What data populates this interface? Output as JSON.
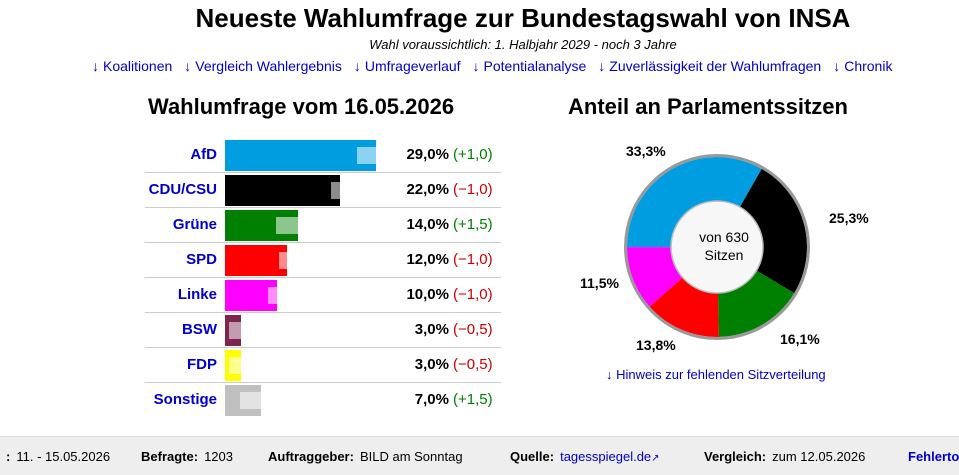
{
  "header": {
    "title": "Neueste Wahlumfrage zur Bundestagswahl von INSA",
    "subtitle": "Wahl voraussichtlich: 1. Halbjahr 2029 - noch 3 Jahre"
  },
  "nav": [
    {
      "arrow": "↓",
      "label": "Koalitionen"
    },
    {
      "arrow": "↓",
      "label": "Vergleich Wahlergebnis"
    },
    {
      "arrow": "↓",
      "label": "Umfrageverlauf"
    },
    {
      "arrow": "↓",
      "label": "Potentialanalyse"
    },
    {
      "arrow": "↓",
      "label": "Zuverlässigkeit der Wahlumfragen"
    },
    {
      "arrow": "↓",
      "label": "Chronik"
    }
  ],
  "poll": {
    "heading": "Wahlumfrage vom 16.05.2026",
    "parties": [
      {
        "name": "AfD",
        "value_label": "29,0%",
        "delta_label": "(+1,0)",
        "delta_sign": "pos",
        "color": "#009ee0"
      },
      {
        "name": "CDU/CSU",
        "value_label": "22,0%",
        "delta_label": "(−1,0)",
        "delta_sign": "neg",
        "color": "#000000"
      },
      {
        "name": "Grüne",
        "value_label": "14,0%",
        "delta_label": "(+1,5)",
        "delta_sign": "pos",
        "color": "#008000"
      },
      {
        "name": "SPD",
        "value_label": "12,0%",
        "delta_label": "(−1,0)",
        "delta_sign": "neg",
        "color": "#ff0000"
      },
      {
        "name": "Linke",
        "value_label": "10,0%",
        "delta_label": "(−1,0)",
        "delta_sign": "neg",
        "color": "#ff00ff"
      },
      {
        "name": "BSW",
        "value_label": "3,0%",
        "delta_label": "(−0,5)",
        "delta_sign": "neg",
        "color": "#7d254f"
      },
      {
        "name": "FDP",
        "value_label": "3,0%",
        "delta_label": "(−0,5)",
        "delta_sign": "neg",
        "color": "#ffff00"
      },
      {
        "name": "Sonstige",
        "value_label": "7,0%",
        "delta_label": "(+1,5)",
        "delta_sign": "pos",
        "color": "#c0c0c0"
      }
    ]
  },
  "seats": {
    "heading": "Anteil an Parlamentssitzen",
    "center_line1": "von 630",
    "center_line2": "Sitzen",
    "note": "↓ Hinweis zur fehlenden Sitzverteilung",
    "labels": [
      "33,3%",
      "25,3%",
      "16,1%",
      "13,8%",
      "11,5%"
    ]
  },
  "footer": {
    "period_label": ":",
    "period_value": "11. - 15.05.2026",
    "respondents_label": "Befragte:",
    "respondents_value": "1203",
    "client_label": "Auftraggeber:",
    "client_value": "BILD am Sonntag",
    "source_label": "Quelle:",
    "source_value": "tagesspiegel.de",
    "comparison_label": "Vergleich:",
    "comparison_value": "zum 12.05.2026",
    "error_label": "Fehlerto"
  },
  "chart_data": [
    {
      "type": "bar",
      "title": "Wahlumfrage vom 16.05.2026",
      "categories": [
        "AfD",
        "CDU/CSU",
        "Grüne",
        "SPD",
        "Linke",
        "BSW",
        "FDP",
        "Sonstige"
      ],
      "values": [
        29.0,
        22.0,
        14.0,
        12.0,
        10.0,
        3.0,
        3.0,
        7.0
      ],
      "changes": [
        1.0,
        -1.0,
        1.5,
        -1.0,
        -1.0,
        -0.5,
        -0.5,
        1.5
      ],
      "previous": [
        28.0,
        23.0,
        12.5,
        13.0,
        11.0,
        3.5,
        3.5,
        5.5
      ],
      "colors": [
        "#009ee0",
        "#000000",
        "#008000",
        "#ff0000",
        "#ff00ff",
        "#7d254f",
        "#ffff00",
        "#c0c0c0"
      ]
    },
    {
      "type": "pie",
      "title": "Anteil an Parlamentssitzen",
      "categories": [
        "AfD",
        "CDU/CSU",
        "Grüne",
        "SPD",
        "Linke"
      ],
      "values": [
        33.3,
        25.3,
        16.1,
        13.8,
        11.5
      ],
      "colors": [
        "#009ee0",
        "#000000",
        "#008000",
        "#ff0000",
        "#ff00ff"
      ]
    }
  ]
}
